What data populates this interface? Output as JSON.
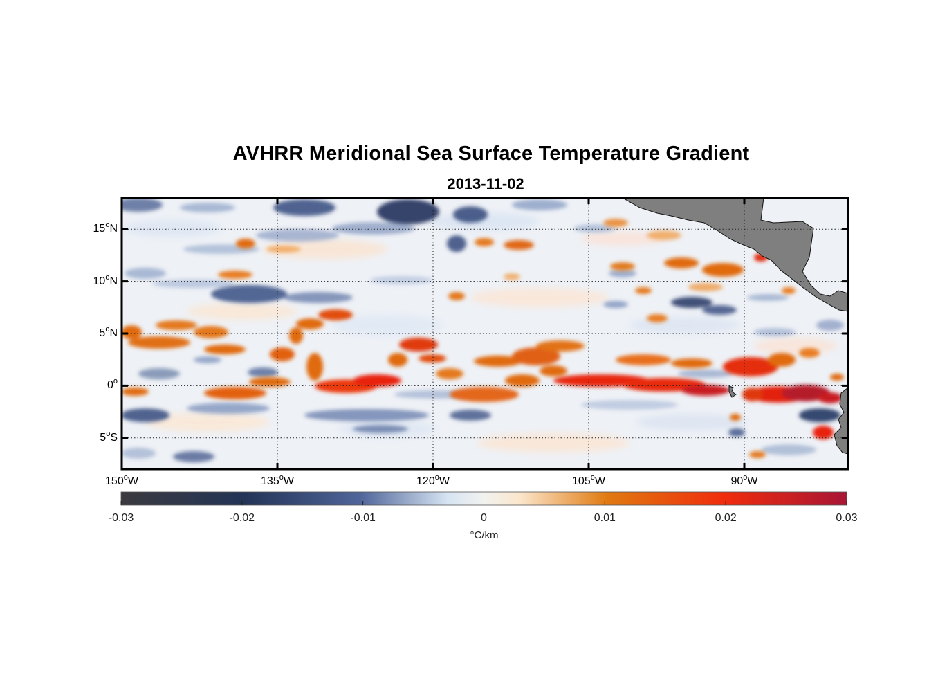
{
  "figure": {
    "title": "AVHRR Meridional Sea Surface Temperature Gradient",
    "subtitle": "2013-11-02"
  },
  "map": {
    "lon_range": [
      -150,
      -80
    ],
    "lat_range": [
      -8,
      18
    ],
    "lat_ticks": [
      {
        "value": 15,
        "num": "15",
        "hemi": "N"
      },
      {
        "value": 10,
        "num": "10",
        "hemi": "N"
      },
      {
        "value": 5,
        "num": "5",
        "hemi": "N"
      },
      {
        "value": 0,
        "num": "0",
        "hemi": ""
      },
      {
        "value": -5,
        "num": "5",
        "hemi": "S"
      }
    ],
    "lon_ticks": [
      {
        "value": -150,
        "num": "150",
        "hemi": "W"
      },
      {
        "value": -135,
        "num": "135",
        "hemi": "W"
      },
      {
        "value": -120,
        "num": "120",
        "hemi": "W"
      },
      {
        "value": -105,
        "num": "105",
        "hemi": "W"
      },
      {
        "value": -90,
        "num": "90",
        "hemi": "W"
      }
    ],
    "land_color": "#7f7f7f",
    "grid": "dotted"
  },
  "colorbar": {
    "range": [
      -0.03,
      0.03
    ],
    "ticks": [
      "-0.03",
      "-0.02",
      "-0.01",
      "0",
      "0.01",
      "0.02",
      "0.03"
    ],
    "unit": "°C/km",
    "colors": [
      "#3b3b3f",
      "#233457",
      "#50669a",
      "#d6e4f2",
      "#fbe6cb",
      "#e07a10",
      "#f02c0c",
      "#a81535"
    ]
  }
}
